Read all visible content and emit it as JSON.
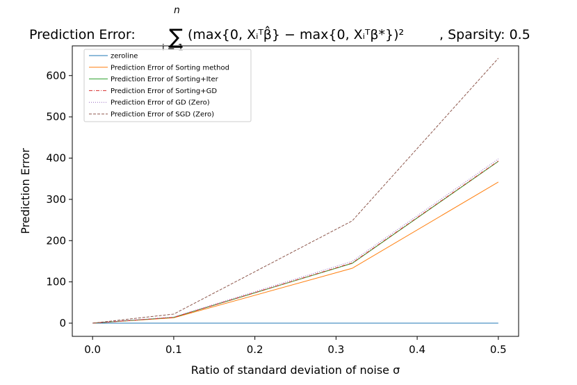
{
  "chart_data": {
    "type": "line",
    "title": "Prediction Error: ∑ᵢ₌₁ⁿ(max{0, Xᵢᵀβ̂} − max{0, Xᵢᵀβ*})², Sparsity: 0.5",
    "title_parts": {
      "prefix": "Prediction Error:",
      "sum_symbol": "∑",
      "sum_upper": "n",
      "sum_lower": "i = 1",
      "formula": "(max{0, Xᵢᵀβ̂} − max{0, Xᵢᵀβ*})²",
      "suffix": ", Sparsity: 0.5"
    },
    "xlabel": "Ratio of standard deviation of noise σ",
    "ylabel": "Prediction Error",
    "xlim": [
      -0.025,
      0.525
    ],
    "ylim": [
      -32,
      672
    ],
    "xticks": [
      0.0,
      0.1,
      0.2,
      0.3,
      0.4,
      0.5
    ],
    "xtick_labels": [
      "0.0",
      "0.1",
      "0.2",
      "0.3",
      "0.4",
      "0.5"
    ],
    "yticks": [
      0,
      100,
      200,
      300,
      400,
      500,
      600
    ],
    "ytick_labels": [
      "0",
      "100",
      "200",
      "300",
      "400",
      "500",
      "600"
    ],
    "legend_position": "upper-left",
    "x": [
      0.0,
      0.1,
      0.32,
      0.5
    ],
    "series": [
      {
        "name": "zeroline",
        "values": [
          0,
          0,
          0,
          0
        ],
        "color": "#1f77b4",
        "dash": "solid"
      },
      {
        "name": "Prediction Error of Sorting method",
        "values": [
          0,
          13,
          133,
          342
        ],
        "color": "#ff7f0e",
        "dash": "solid"
      },
      {
        "name": "Prediction Error of Sorting+Iter",
        "values": [
          0,
          14,
          145,
          392
        ],
        "color": "#2ca02c",
        "dash": "solid"
      },
      {
        "name": "Prediction Error of Sorting+GD",
        "values": [
          0,
          14,
          146,
          393
        ],
        "color": "#d62728",
        "dash": "dashdot"
      },
      {
        "name": "Prediction Error of GD (Zero)",
        "values": [
          0,
          15,
          150,
          398
        ],
        "color": "#9467bd",
        "dash": "dotted"
      },
      {
        "name": "Prediction Error of SGD (Zero)",
        "values": [
          0,
          22,
          248,
          642
        ],
        "color": "#8c564b",
        "dash": "dashed"
      }
    ]
  }
}
